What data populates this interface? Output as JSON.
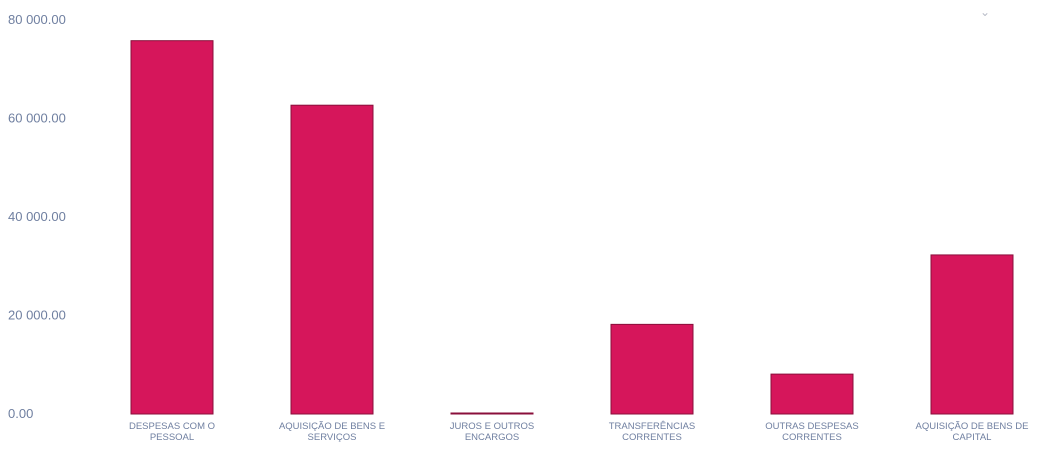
{
  "chart_data": {
    "type": "bar",
    "title": "",
    "xlabel": "",
    "ylabel": "",
    "ylim": [
      0,
      80000
    ],
    "yticks": [
      "0.00",
      "20 000.00",
      "40 000.00",
      "60 000.00",
      "80 000.00"
    ],
    "ytick_values": [
      0,
      20000,
      40000,
      60000,
      80000
    ],
    "grid": false,
    "legend": "none",
    "categories": [
      [
        "DESPESAS COM O",
        "PESSOAL"
      ],
      [
        "AQUISIÇÃO DE BENS E",
        "SERVIÇOS"
      ],
      [
        "JUROS E OUTROS",
        "ENCARGOS"
      ],
      [
        "TRANSFERÊNCIAS",
        "CORRENTES"
      ],
      [
        "OUTRAS DESPESAS",
        "CORRENTES"
      ],
      [
        "AQUISIÇÃO DE BENS DE",
        "CAPITAL"
      ]
    ],
    "values": [
      75800,
      62700,
      200,
      18200,
      8100,
      32300
    ],
    "colors": {
      "bar": "#d6165b",
      "bar_outline": "#8a0f3b",
      "axis_text": "#6f7fa0"
    }
  },
  "corner_mark": "⌄"
}
